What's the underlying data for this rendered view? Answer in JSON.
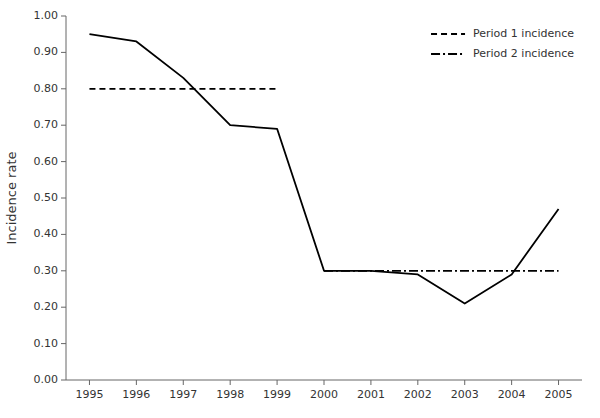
{
  "chart_data": {
    "type": "line",
    "y_label": "Incidence rate",
    "x": [
      1995,
      1996,
      1997,
      1998,
      1999,
      2000,
      2001,
      2002,
      2003,
      2004,
      2005
    ],
    "series": [
      {
        "color": "#000000",
        "line_style": "solid",
        "values": [
          0.95,
          0.93,
          0.83,
          0.7,
          0.69,
          0.3,
          0.3,
          0.29,
          0.21,
          0.29,
          0.47
        ]
      },
      {
        "name": "Period 1 incidence",
        "color": "#000000",
        "line_style": "dashed",
        "x": [
          1995,
          1999
        ],
        "values": [
          0.8,
          0.8
        ]
      },
      {
        "name": "Period 2 incidence",
        "color": "#000000",
        "line_style": "dashdot",
        "x": [
          2000,
          2005
        ],
        "values": [
          0.3,
          0.3
        ]
      }
    ],
    "xlim": [
      1994.5,
      2005.5
    ],
    "ylim": [
      0.0,
      1.0
    ],
    "xticks": [
      1995,
      1996,
      1997,
      1998,
      1999,
      2000,
      2001,
      2002,
      2003,
      2004,
      2005
    ],
    "yticks": [
      {
        "value": 0.0,
        "label": "0.00"
      },
      {
        "value": 0.1,
        "label": "0.10"
      },
      {
        "value": 0.2,
        "label": "0.20"
      },
      {
        "value": 0.3,
        "label": "0.30"
      },
      {
        "value": 0.4,
        "label": "0.40"
      },
      {
        "value": 0.5,
        "label": "0.50"
      },
      {
        "value": 0.6,
        "label": "0.60"
      },
      {
        "value": 0.7,
        "label": "0.70"
      },
      {
        "value": 0.8,
        "label": "0.80"
      },
      {
        "value": 0.9,
        "label": "0.90"
      },
      {
        "value": 1.0,
        "label": "1.00"
      }
    ],
    "grid": false,
    "legend": "upper right"
  }
}
